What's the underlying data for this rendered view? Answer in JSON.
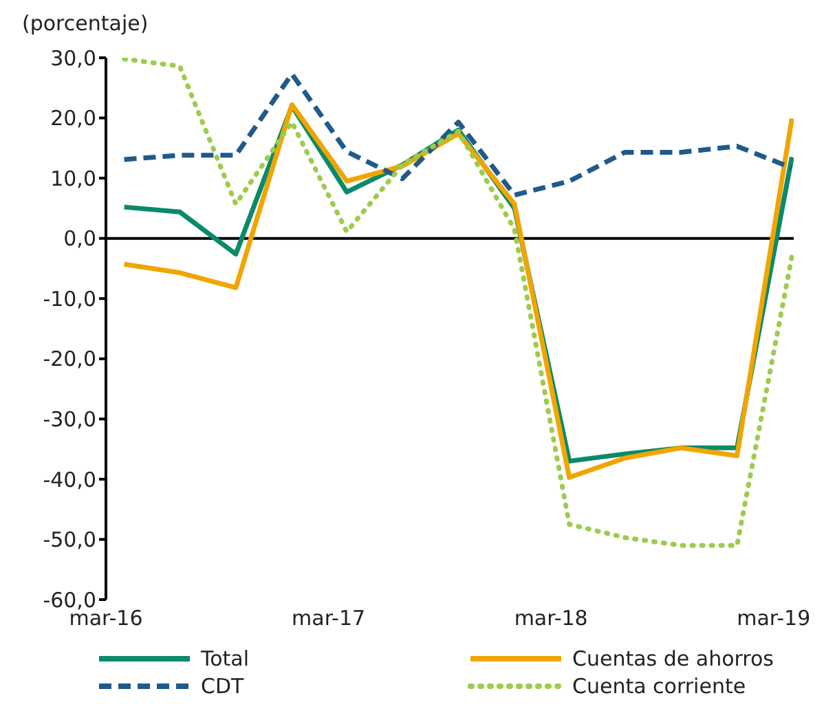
{
  "chart_data": {
    "type": "line",
    "ylabel": "(porcentaje)",
    "x": [
      "2016-03-31",
      "2016-06-30",
      "2016-09-30",
      "2016-12-31",
      "2017-03-31",
      "2017-06-30",
      "2017-09-30",
      "2017-12-31",
      "2018-03-31",
      "2018-06-30",
      "2018-09-30",
      "2018-12-31",
      "2019-03-31"
    ],
    "xlim": [
      "2016-03-01",
      "2019-04-03"
    ],
    "xticks": [
      {
        "value": "2016-03-01",
        "label": "mar-16"
      },
      {
        "value": "2017-03-01",
        "label": "mar-17"
      },
      {
        "value": "2018-03-01",
        "label": "mar-18"
      },
      {
        "value": "2019-03-01",
        "label": "mar-19"
      }
    ],
    "ylim": [
      -60,
      30
    ],
    "yticks": [
      {
        "value": -60,
        "label": "-60,0"
      },
      {
        "value": -50,
        "label": "-50,0"
      },
      {
        "value": -40,
        "label": "-40,0"
      },
      {
        "value": -30,
        "label": "-30,0"
      },
      {
        "value": -20,
        "label": "-20,0"
      },
      {
        "value": -10,
        "label": "-10,0"
      },
      {
        "value": 0,
        "label": "0,0"
      },
      {
        "value": 10,
        "label": "10,0"
      },
      {
        "value": 20,
        "label": "20,0"
      },
      {
        "value": 30,
        "label": "30,0"
      }
    ],
    "series": [
      {
        "name": "Total",
        "color": "#0a8a6a",
        "line_style": "solid",
        "values": [
          5.2,
          4.4,
          -2.6,
          22,
          7.7,
          12.2,
          18,
          5,
          -37,
          -35.8,
          -34.8,
          -34.8,
          13.5
        ]
      },
      {
        "name": "Cuentas de ahorros",
        "color": "#f0a500",
        "line_style": "solid",
        "values": [
          -4.3,
          -5.7,
          -8.2,
          22.2,
          9.5,
          12,
          17.4,
          5.7,
          -39.7,
          -36.5,
          -34.8,
          -36.1,
          19.9
        ]
      },
      {
        "name": "CDT",
        "color": "#1f5a8a",
        "line_style": "dashed",
        "values": [
          13.1,
          13.8,
          13.8,
          27.3,
          14.4,
          9.9,
          19.3,
          7.2,
          9.5,
          14.3,
          14.3,
          15.3,
          11.7
        ]
      },
      {
        "name": "Cuenta corriente",
        "color": "#9ccc4c",
        "line_style": "dotted",
        "values": [
          29.8,
          28.6,
          5.7,
          19.3,
          1.1,
          12.2,
          17.8,
          1.5,
          -47.5,
          -49.7,
          -51,
          -51,
          -3
        ]
      }
    ],
    "ref_lines": [
      {
        "axis": "y",
        "value": 0,
        "color": "#000000",
        "line_style": "solid"
      }
    ],
    "grid": false,
    "legend": "bottom",
    "marker": "none"
  }
}
